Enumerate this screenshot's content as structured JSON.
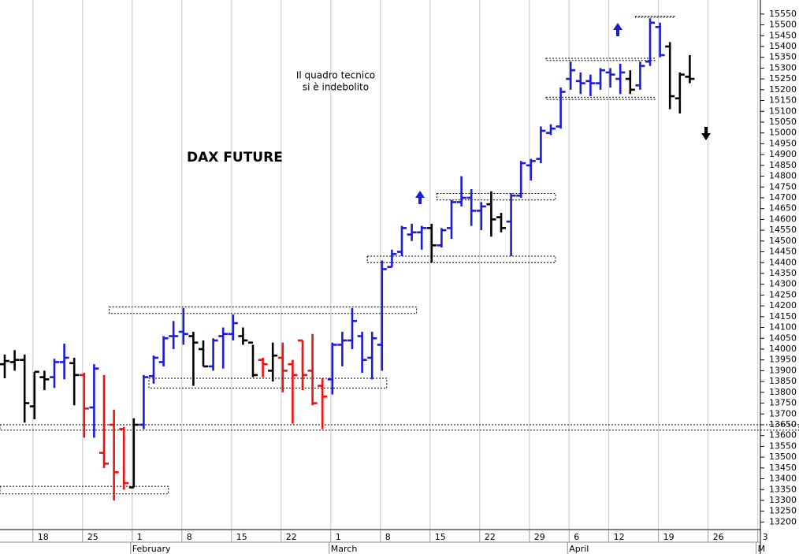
{
  "chart_data": {
    "type": "ohlc",
    "title": "DAX FUTURE",
    "annotations": [
      "Il quadro tecnico",
      "si è indebolito"
    ],
    "categories": [
      null,
      null,
      null,
      "18",
      null,
      null,
      null,
      null,
      "25",
      null,
      null,
      null,
      null,
      "1",
      null,
      null,
      null,
      null,
      "8",
      null,
      null,
      null,
      null,
      "15",
      null,
      null,
      null,
      null,
      "22",
      null,
      null,
      null,
      null,
      "1",
      null,
      null,
      null,
      null,
      "8",
      null,
      null,
      null,
      null,
      "15",
      null,
      null,
      null,
      null,
      "22",
      null,
      null,
      null,
      null,
      "29",
      null,
      null,
      null,
      "6",
      null,
      null,
      null,
      "12",
      null,
      null,
      null,
      null,
      "19",
      null,
      null,
      null,
      null,
      "26",
      null,
      null,
      null,
      null,
      "3"
    ],
    "months": [
      {
        "label": "February",
        "at": 13
      },
      {
        "label": "March",
        "at": 33
      },
      {
        "label": "April",
        "at": 57
      },
      {
        "label": "M",
        "at": 76
      }
    ],
    "open": [
      13930,
      13940,
      13950,
      13735,
      13870,
      13870,
      13940,
      13935,
      13880,
      13730,
      13520,
      13650,
      13630,
      13360,
      13650,
      13875,
      13940,
      14060,
      14080,
      14060,
      14000,
      13920,
      14060,
      14070,
      14060,
      14030,
      13950,
      13900,
      13960,
      13930,
      14040,
      13900,
      13830,
      13860,
      14020,
      14040,
      14060,
      13960,
      14020,
      14380,
      14450,
      14530,
      14540,
      14560,
      14480,
      14560,
      14680,
      14700,
      14640,
      14670,
      14610,
      14590,
      14710,
      14850,
      14880,
      15000,
      15030,
      15250,
      15240,
      15240,
      15230,
      15280,
      15250,
      15250,
      15220,
      15330,
      15490,
      15400,
      15160,
      15260,
      null,
      null,
      null,
      null,
      null,
      null,
      null
    ],
    "high": [
      13975,
      13995,
      13975,
      13895,
      13900,
      13955,
      14025,
      13960,
      13890,
      13930,
      13880,
      13720,
      13640,
      13680,
      13880,
      13970,
      14060,
      14130,
      14190,
      14080,
      14040,
      14050,
      14100,
      14160,
      14100,
      14020,
      13960,
      14030,
      14030,
      13950,
      14040,
      14070,
      13865,
      14030,
      14080,
      14190,
      14080,
      14080,
      14410,
      14460,
      14570,
      14580,
      14570,
      14580,
      14560,
      14690,
      14800,
      14740,
      14680,
      14730,
      14630,
      14720,
      14870,
      14880,
      15030,
      15040,
      15210,
      15330,
      15280,
      15270,
      15300,
      15300,
      15320,
      15290,
      15330,
      15530,
      15510,
      15420,
      15280,
      15360,
      null,
      null,
      null,
      null,
      null,
      null,
      null
    ],
    "low": [
      13865,
      13900,
      13660,
      13675,
      13810,
      13820,
      13860,
      13740,
      13590,
      13590,
      13450,
      13300,
      13350,
      13360,
      13630,
      13840,
      13920,
      14000,
      14020,
      13830,
      13920,
      13900,
      13910,
      14040,
      14020,
      13870,
      13870,
      13850,
      13800,
      13655,
      13810,
      13740,
      13630,
      13790,
      13920,
      14000,
      13890,
      13860,
      13900,
      14380,
      14430,
      14500,
      14460,
      14400,
      14470,
      14510,
      14660,
      14570,
      14550,
      14520,
      14540,
      14430,
      14700,
      14780,
      14860,
      14990,
      15020,
      15200,
      15180,
      15170,
      15200,
      15210,
      15180,
      15180,
      15200,
      15310,
      15350,
      15110,
      15090,
      15230,
      null,
      null,
      null,
      null,
      null,
      null,
      null
    ],
    "close": [
      13945,
      13950,
      13750,
      13895,
      13860,
      13940,
      13960,
      13880,
      13725,
      13910,
      13470,
      13430,
      13380,
      13650,
      13870,
      13960,
      14050,
      14060,
      14070,
      14030,
      13920,
      14040,
      14070,
      14120,
      14040,
      13880,
      13930,
      13970,
      13900,
      13880,
      13880,
      13750,
      13780,
      14020,
      14040,
      14130,
      13950,
      14050,
      14370,
      14440,
      14560,
      14540,
      14560,
      14480,
      14550,
      14680,
      14700,
      14640,
      14660,
      14600,
      14560,
      14710,
      14860,
      14870,
      15010,
      15020,
      15190,
      15290,
      15230,
      15230,
      15290,
      15270,
      15280,
      15200,
      15310,
      15510,
      15360,
      15170,
      15270,
      15250,
      null,
      null,
      null,
      null,
      null,
      null,
      null
    ],
    "colors": [
      "#000000",
      "#000000",
      "#000000",
      "#000000",
      "#000000",
      "#1c1cd4",
      "#1c1cd4",
      "#000000",
      "#ee1111",
      "#1c1cd4",
      "#ee1111",
      "#ee1111",
      "#ee1111",
      "#000000",
      "#1c1cd4",
      "#1c1cd4",
      "#1c1cd4",
      "#1c1cd4",
      "#1c1cd4",
      "#000000",
      "#000000",
      "#1c1cd4",
      "#1c1cd4",
      "#1c1cd4",
      "#000000",
      "#000000",
      "#ee1111",
      "#000000",
      "#ee1111",
      "#ee1111",
      "#ee1111",
      "#ee1111",
      "#ee1111",
      "#1c1cd4",
      "#1c1cd4",
      "#1c1cd4",
      "#1c1cd4",
      "#1c1cd4",
      "#1c1cd4",
      "#1c1cd4",
      "#1c1cd4",
      "#1c1cd4",
      "#1c1cd4",
      "#000000",
      "#1c1cd4",
      "#1c1cd4",
      "#1c1cd4",
      "#1c1cd4",
      "#1c1cd4",
      "#000000",
      "#000000",
      "#1c1cd4",
      "#1c1cd4",
      "#1c1cd4",
      "#1c1cd4",
      "#1c1cd4",
      "#1c1cd4",
      "#1c1cd4",
      "#1c1cd4",
      "#1c1cd4",
      "#1c1cd4",
      "#1c1cd4",
      "#1c1cd4",
      "#000000",
      "#1c1cd4",
      "#1c1cd4",
      "#1c1cd4",
      "#000000",
      "#000000",
      "#000000",
      null,
      null,
      null,
      null,
      null,
      null,
      null
    ],
    "zones": [
      {
        "low": 13330,
        "high": 13365,
        "start": 0,
        "end": 16
      },
      {
        "low": 13625,
        "high": 13650,
        "start": 0,
        "end": 80
      },
      {
        "low": 13820,
        "high": 13865,
        "start": 15,
        "end": 38
      },
      {
        "low": 14165,
        "high": 14195,
        "start": 11,
        "end": 41
      },
      {
        "low": 14400,
        "high": 14430,
        "start": 37,
        "end": 55
      },
      {
        "low": 14690,
        "high": 14720,
        "start": 44,
        "end": 55
      },
      {
        "low": 15335,
        "high": 15345,
        "start": 55,
        "end": 65
      },
      {
        "low": 15155,
        "high": 15165,
        "start": 55,
        "end": 65
      },
      {
        "low": 15535,
        "high": 15540,
        "start": 64,
        "end": 67
      }
    ],
    "ylim": [
      13165,
      15615
    ],
    "yticks": [
      13200,
      13250,
      13300,
      13350,
      13400,
      13450,
      13500,
      13550,
      13600,
      13650,
      13700,
      13750,
      13800,
      13850,
      13900,
      13950,
      14000,
      14050,
      14100,
      14150,
      14200,
      14250,
      14300,
      14350,
      14400,
      14450,
      14500,
      14550,
      14600,
      14650,
      14700,
      14750,
      14800,
      14850,
      14900,
      14950,
      15000,
      15050,
      15100,
      15150,
      15200,
      15250,
      15300,
      15350,
      15400,
      15450,
      15500,
      15550
    ],
    "xgrid": true
  }
}
